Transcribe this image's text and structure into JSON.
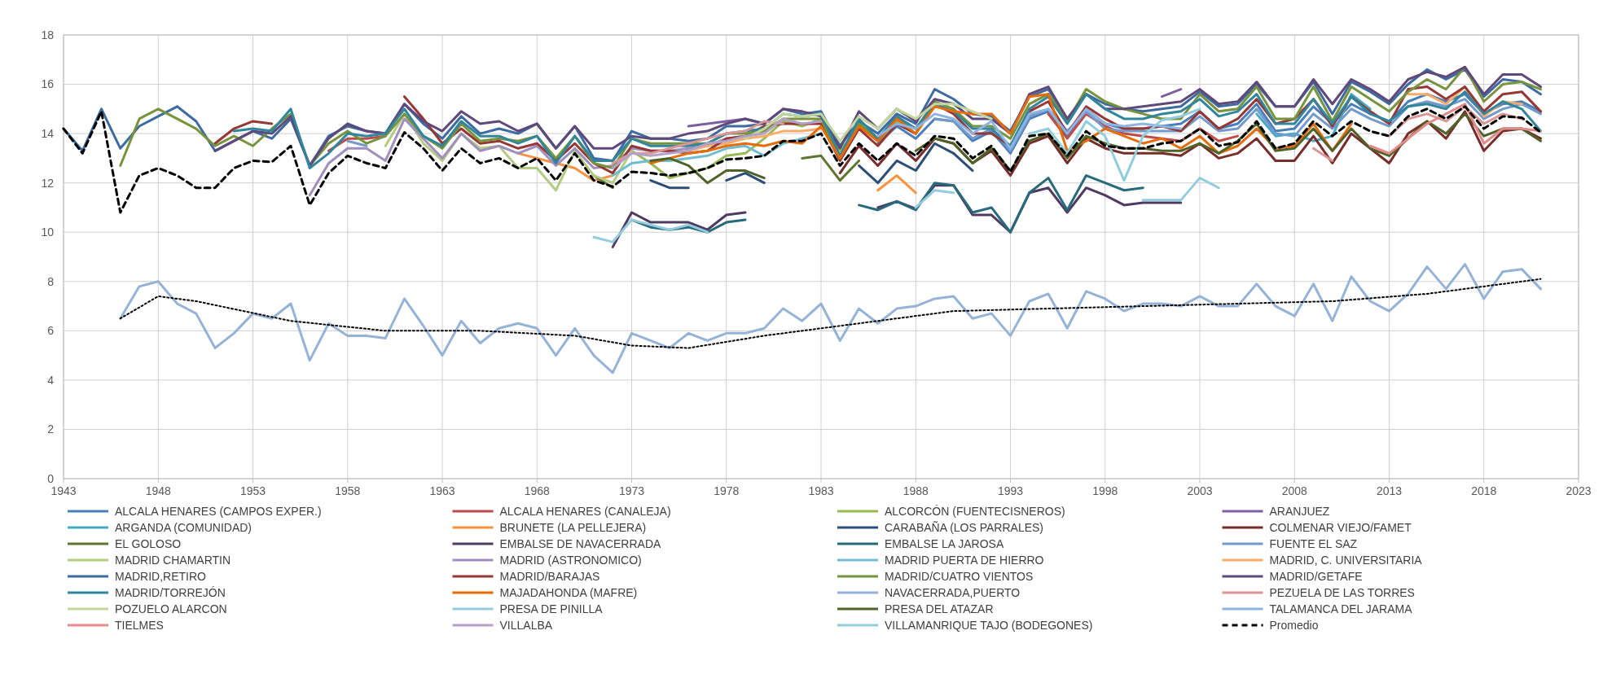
{
  "chart_data": {
    "type": "line",
    "xlim": [
      1943,
      2023
    ],
    "xticks": [
      1943,
      1948,
      1953,
      1958,
      1963,
      1968,
      1973,
      1978,
      1983,
      1988,
      1993,
      1998,
      2003,
      2008,
      2013,
      2018,
      2023
    ],
    "ylim": [
      0,
      18
    ],
    "yticks": [
      0,
      2,
      4,
      6,
      8,
      10,
      12,
      14,
      16,
      18
    ],
    "grid": true,
    "legend": "bottom",
    "marker": "none",
    "line_style": "solid",
    "series": [
      {
        "name": "ALCALA HENARES (CAMPOS EXPER.)",
        "color": "#4a7ebb",
        "x": [
          1986,
          1987,
          1988,
          1989,
          1990,
          1991,
          1992,
          1993,
          1994,
          1995,
          1996,
          1997,
          1998,
          1999,
          2000,
          2001,
          2002,
          2003,
          2004,
          2005,
          2006,
          2007,
          2008,
          2009,
          2010,
          2011,
          2012,
          2013,
          2014,
          2015,
          2016,
          2017,
          2018,
          2019,
          2020,
          2021
        ],
        "values": [
          13.6,
          14.3,
          13.8,
          14.6,
          14.5,
          13.7,
          14.1,
          13.2,
          14.6,
          14.9,
          13.9,
          15.0,
          14.4,
          14.2,
          14.2,
          14.3,
          14.4,
          14.9,
          14.2,
          14.4,
          15.2,
          14.1,
          14.2,
          15.1,
          14.4,
          15.2,
          14.8,
          14.5,
          15.3,
          15.6,
          15.3,
          15.6,
          14.8,
          15.2,
          15.3,
          14.9
        ]
      },
      {
        "name": "ALCALA HENARES (CANALEJA)",
        "color": "#be4b48",
        "x": [
          1957,
          1958,
          1959,
          1960,
          1961,
          1995,
          1996,
          1997,
          1998,
          1999,
          2000,
          2001,
          2002,
          2003,
          2004,
          2005
        ],
        "values": [
          13.3,
          13.8,
          13.8,
          13.9,
          null,
          14.8,
          13.8,
          14.8,
          14.3,
          14.0,
          13.9,
          13.8,
          13.7,
          14.2,
          13.7,
          13.9
        ]
      },
      {
        "name": "ALCORCÓN (FUENTECISNEROS)",
        "color": "#98b954",
        "x": [
          1973,
          1974,
          1975,
          1976,
          1977,
          1978,
          1979,
          1980,
          1981,
          1982,
          1983,
          1984,
          1985,
          1986,
          1987,
          1988
        ],
        "values": [
          13.3,
          12.8,
          12.2,
          12.4,
          12.6,
          13.1,
          13.2,
          13.8,
          14.5,
          14.3,
          14.6,
          13.3,
          14.3,
          13.7,
          14.5,
          14.0
        ]
      },
      {
        "name": "ARANJUEZ",
        "color": "#7d60a0",
        "x": [
          1976,
          1977,
          1978,
          1979,
          1980,
          1981,
          2001,
          2002
        ],
        "values": [
          14.3,
          14.4,
          14.5,
          14.6,
          14.4,
          null,
          15.5,
          15.8
        ]
      },
      {
        "name": "ARGANDA (COMUNIDAD)",
        "color": "#46aac5",
        "x": [
          2006,
          2007,
          2008,
          2009,
          2010,
          2011,
          2012
        ],
        "values": [
          14.8,
          13.9,
          14.0,
          13.7,
          13.9,
          15.6,
          15.0
        ]
      },
      {
        "name": "BRUNETE (LA PELLEJERA)",
        "color": "#f69240",
        "x": [
          1967,
          1968,
          1969,
          1970,
          1971,
          1972,
          1973,
          1986,
          1987,
          1988
        ],
        "values": [
          13.2,
          13.0,
          12.8,
          12.6,
          12.1,
          12.3,
          null,
          11.7,
          12.3,
          11.6
        ]
      },
      {
        "name": "CARABAÑA (LOS PARRALES)",
        "color": "#2c4d75",
        "x": [
          1974,
          1975,
          1976,
          1977,
          1978,
          1979,
          1980,
          1981,
          1985,
          1986,
          1987,
          1988,
          1989,
          1990,
          1991
        ],
        "values": [
          12.1,
          11.8,
          11.8,
          null,
          12.1,
          12.4,
          12.0,
          null,
          12.7,
          12.0,
          12.9,
          12.5,
          13.6,
          13.2,
          12.5
        ]
      },
      {
        "name": "COLMENAR VIEJO/FAMET",
        "color": "#772c2a",
        "x": [
          1984,
          1985,
          1986,
          1987,
          1988,
          1989,
          1990,
          1991,
          1992,
          1993,
          1994,
          1995,
          1996,
          1997,
          1998,
          1999,
          2000,
          2001,
          2002,
          2003,
          2004,
          2005,
          2006,
          2007,
          2008,
          2009,
          2010,
          2011,
          2012,
          2013,
          2014,
          2015,
          2016,
          2017,
          2018,
          2019,
          2020,
          2021
        ],
        "values": [
          12.4,
          13.5,
          12.7,
          13.6,
          12.9,
          13.8,
          13.6,
          12.8,
          13.3,
          12.3,
          13.6,
          13.9,
          12.8,
          13.8,
          13.4,
          13.2,
          13.2,
          13.2,
          13.1,
          13.6,
          13.0,
          13.2,
          13.8,
          12.9,
          12.9,
          13.9,
          12.8,
          14.0,
          13.4,
          12.8,
          14.0,
          14.5,
          13.8,
          14.9,
          13.3,
          14.1,
          14.2,
          13.8
        ]
      },
      {
        "name": "EL GOLOSO",
        "color": "#5f7530",
        "x": [
          1971,
          1972,
          1973,
          1982,
          1983,
          1984,
          1985
        ],
        "values": [
          12.3,
          11.8,
          null,
          13.0,
          13.1,
          12.1,
          12.9
        ]
      },
      {
        "name": "EMBALSE DE NAVACERRADA",
        "color": "#4d3b62",
        "x": [
          1972,
          1973,
          1974,
          1975,
          1976,
          1977,
          1978,
          1979,
          1980,
          1986,
          1987,
          1988,
          1989,
          1990,
          1991,
          1992,
          1993,
          1994,
          1995,
          1996,
          1997,
          1998,
          1999,
          2000,
          2001,
          2002
        ],
        "values": [
          9.4,
          10.8,
          10.4,
          10.4,
          10.4,
          10.1,
          10.7,
          10.8,
          null,
          11.0,
          11.25,
          10.95,
          11.9,
          11.9,
          10.7,
          10.7,
          10.0,
          11.6,
          11.8,
          10.8,
          11.8,
          11.5,
          11.1,
          11.2,
          11.2,
          11.2
        ]
      },
      {
        "name": "EMBALSE LA JAROSA",
        "color": "#276a7c",
        "x": [
          1973,
          1974,
          1975,
          1976,
          1977,
          1978,
          1979,
          1980,
          1985,
          1986,
          1987,
          1988,
          1989,
          1990,
          1991,
          1992,
          1993,
          1994,
          1995,
          1996,
          1997,
          1998,
          1999,
          2000
        ],
        "values": [
          10.5,
          10.2,
          10.1,
          10.2,
          10.0,
          10.4,
          10.5,
          null,
          11.1,
          10.9,
          11.25,
          10.9,
          12.0,
          11.9,
          10.8,
          11.0,
          10.0,
          11.6,
          12.2,
          10.9,
          12.3,
          12.0,
          11.7,
          11.8
        ]
      },
      {
        "name": "FUENTE EL SAZ",
        "color": "#729aca",
        "x": [
          1958,
          1959,
          1960,
          1989,
          1990,
          1991,
          1992,
          1993,
          1994,
          1995,
          1996,
          1997,
          1998,
          1999,
          2000,
          2001,
          2002,
          2003,
          2004,
          2005,
          2006,
          2007,
          2008,
          2009,
          2010,
          2011,
          2012,
          2013,
          2014,
          2015,
          2016,
          2017,
          2018,
          2019,
          2020,
          2021
        ],
        "values": [
          13.7,
          13.5,
          null,
          14.6,
          14.5,
          13.8,
          14.2,
          13.3,
          14.7,
          15.0,
          14.1,
          14.9,
          14.2,
          14.1,
          14.1,
          14.1,
          14.1,
          14.7,
          14.1,
          14.2,
          15.0,
          14.0,
          13.9,
          14.8,
          14.2,
          15.0,
          14.6,
          14.3,
          15.1,
          15.3,
          15.1,
          15.4,
          14.6,
          15.0,
          15.2,
          14.8
        ]
      },
      {
        "name": "MADRID  CHAMARTIN",
        "color": "#b3cb82",
        "x": [
          1960,
          1961,
          1962,
          1963,
          1964,
          1965,
          1966,
          1967,
          1968,
          1969,
          1970,
          1971,
          1972,
          1973
        ],
        "values": [
          13.5,
          14.8,
          13.6,
          12.9,
          14.0,
          13.4,
          13.5,
          12.6,
          12.6,
          11.7,
          13.3,
          12.3,
          12.0,
          13.3
        ]
      },
      {
        "name": "MADRID (ASTRONOMICO)",
        "color": "#a08fbd",
        "x": [
          1956,
          1957,
          1958,
          1959,
          1960,
          1961,
          1962,
          1963,
          1964,
          1965,
          1966,
          1967,
          1968,
          1969,
          1970,
          1971,
          1972,
          1973,
          1974,
          1975,
          1976,
          1977,
          1978,
          1979
        ],
        "values": [
          11.5,
          12.8,
          13.4,
          13.4,
          12.9,
          14.6,
          13.8,
          13.0,
          14.0,
          13.3,
          13.5,
          13.2,
          13.5,
          12.7,
          13.4,
          12.6,
          12.7,
          13.4,
          13.3,
          13.3,
          13.4,
          13.5,
          13.8,
          13.9
        ]
      },
      {
        "name": "MADRID PUERTA DE HIERRO",
        "color": "#6fbdd1",
        "x": [
          1972,
          1973,
          1974,
          1975,
          1976,
          1977,
          1978,
          1979,
          1980,
          1981,
          1982,
          1983
        ],
        "values": [
          12.3,
          12.8,
          12.9,
          12.9,
          13.0,
          13.1,
          13.4,
          13.5,
          13.1,
          13.6,
          13.8,
          14.0
        ]
      },
      {
        "name": "MADRID, C. UNIVERSITARIA",
        "color": "#f9ab6b",
        "x": [
          1976,
          1977,
          1978,
          1979,
          1980,
          1981,
          1982,
          1983,
          2013,
          2014,
          2015,
          2016,
          2017,
          2018,
          2019,
          2020
        ],
        "values": [
          13.3,
          13.5,
          13.6,
          13.8,
          13.9,
          14.1,
          14.1,
          14.2,
          null,
          15.6,
          15.6,
          15.2,
          15.9,
          14.7,
          15.3,
          15.2
        ]
      },
      {
        "name": "MADRID,RETIRO",
        "color": "#3d6aa0",
        "x": [
          1943,
          1944,
          1945,
          1946,
          1947,
          1948,
          1949,
          1950,
          1951,
          1952,
          1953,
          1954,
          1955,
          1956,
          1957,
          1958,
          1959,
          1960,
          1961,
          1962,
          1963,
          1964,
          1965,
          1966,
          1967,
          1968,
          1969,
          1970,
          1971,
          1972,
          1973,
          1974,
          1975,
          1976,
          1977,
          1978,
          1979,
          1980,
          1981,
          1982,
          1983,
          1984,
          1985,
          1986,
          1987,
          1988,
          1989,
          1990,
          1991,
          1992,
          1993,
          1994,
          1995,
          1996,
          1997,
          1998,
          1999,
          2000,
          2001,
          2002,
          2003,
          2004,
          2005,
          2006,
          2007,
          2008,
          2009,
          2010,
          2011,
          2012,
          2013,
          2014,
          2015,
          2016,
          2017,
          2018,
          2019,
          2020,
          2021
        ],
        "values": [
          14.2,
          13.3,
          15.0,
          13.4,
          14.3,
          14.7,
          15.1,
          14.5,
          13.3,
          13.7,
          14.1,
          13.8,
          14.6,
          12.7,
          13.9,
          14.3,
          14.1,
          14.0,
          15.2,
          14.4,
          13.8,
          14.7,
          14.0,
          14.2,
          14.0,
          14.4,
          13.4,
          14.3,
          13.0,
          12.9,
          14.1,
          13.8,
          13.8,
          13.7,
          13.8,
          14.3,
          14.3,
          14.4,
          15.0,
          14.8,
          14.9,
          13.5,
          14.5,
          14.0,
          14.8,
          14.4,
          15.8,
          15.4,
          14.8,
          14.7,
          14.1,
          15.5,
          15.8,
          14.6,
          15.6,
          15.2,
          15.0,
          14.9,
          15.0,
          15.1,
          15.7,
          15.1,
          15.2,
          16.0,
          15.1,
          15.1,
          16.1,
          14.8,
          16.1,
          15.7,
          15.2,
          16.0,
          16.6,
          16.2,
          16.6,
          15.5,
          16.2,
          16.1,
          15.6
        ]
      },
      {
        "name": "MADRID/BARAJAS",
        "color": "#953735",
        "x": [
          1951,
          1952,
          1953,
          1954,
          1955,
          1961,
          1962,
          1963,
          1964,
          1965,
          1966,
          1967,
          1968,
          1969,
          1970,
          1971,
          1972,
          1973,
          1974,
          1975,
          1976,
          1977,
          1978,
          1979,
          1980,
          1981,
          1982,
          1983,
          1984,
          1985,
          1986,
          1987,
          1988,
          1989,
          1990,
          1991,
          1992,
          1993,
          1994,
          1995,
          1996,
          1997,
          1998,
          1999,
          2000,
          2001,
          2002,
          2003,
          2004,
          2005,
          2006,
          2007,
          2008,
          2009,
          2010,
          2011,
          2012,
          2013,
          2014,
          2015,
          2016,
          2017,
          2018,
          2019,
          2020,
          2021
        ],
        "values": [
          13.6,
          14.2,
          14.5,
          14.4,
          null,
          15.5,
          14.6,
          13.6,
          14.2,
          13.6,
          13.7,
          13.4,
          13.6,
          12.9,
          13.6,
          12.8,
          12.4,
          13.5,
          13.3,
          13.3,
          13.2,
          13.3,
          13.8,
          13.9,
          14.3,
          14.4,
          14.4,
          14.4,
          12.9,
          14.2,
          13.5,
          14.4,
          14.0,
          15.2,
          14.8,
          14.0,
          14.0,
          13.5,
          14.9,
          15.3,
          14.0,
          15.1,
          14.6,
          14.2,
          14.2,
          14.3,
          14.1,
          14.9,
          14.2,
          14.6,
          15.4,
          14.4,
          14.6,
          15.4,
          14.3,
          15.5,
          14.9,
          14.4,
          15.8,
          15.9,
          15.4,
          15.9,
          14.9,
          15.6,
          15.7,
          14.9
        ]
      },
      {
        "name": "MADRID/CUATRO VIENTOS",
        "color": "#77933c",
        "x": [
          1946,
          1947,
          1948,
          1949,
          1950,
          1951,
          1952,
          1953,
          1954,
          1955,
          1956,
          1957,
          1958,
          1959,
          1960,
          1961,
          1962,
          1963,
          1964,
          1965,
          1966,
          1967,
          1968,
          1969,
          1970,
          1971,
          1972,
          1973,
          1974,
          1975,
          1976,
          1977,
          1978,
          1979,
          1980,
          1981,
          1982,
          1983,
          1984,
          1985,
          1986,
          1987,
          1988,
          1989,
          1990,
          1991,
          1992,
          1993,
          1994,
          1995,
          1996,
          1997,
          1998,
          1999,
          2000,
          2001,
          2002,
          2003,
          2004,
          2005,
          2006,
          2007,
          2008,
          2009,
          2010,
          2011,
          2012,
          2013,
          2014,
          2015,
          2016,
          2017,
          2018,
          2019,
          2020,
          2021
        ],
        "values": [
          12.7,
          14.6,
          15.0,
          14.6,
          14.2,
          13.5,
          13.9,
          13.5,
          14.2,
          14.8,
          12.7,
          13.6,
          14.1,
          13.6,
          13.9,
          14.8,
          13.9,
          13.4,
          14.4,
          13.7,
          13.8,
          13.7,
          13.9,
          13.0,
          13.9,
          12.8,
          12.6,
          13.8,
          13.6,
          13.6,
          13.6,
          13.6,
          14.0,
          14.0,
          14.1,
          14.6,
          14.6,
          14.6,
          13.0,
          14.4,
          13.8,
          14.6,
          14.2,
          15.3,
          15.0,
          14.3,
          14.3,
          13.8,
          15.2,
          15.6,
          14.5,
          15.8,
          15.3,
          15.0,
          14.8,
          14.6,
          14.6,
          15.6,
          14.9,
          15.0,
          15.9,
          14.6,
          14.6,
          15.9,
          14.5,
          15.9,
          15.4,
          14.9,
          15.7,
          16.2,
          15.8,
          16.7,
          15.3,
          16.0,
          16.1,
          15.8
        ]
      },
      {
        "name": "MADRID/GETAFE",
        "color": "#5f497a",
        "x": [
          1951,
          1952,
          1953,
          1954,
          1955,
          1956,
          1957,
          1958,
          1959,
          1960,
          1961,
          1962,
          1963,
          1964,
          1965,
          1966,
          1967,
          1968,
          1969,
          1970,
          1971,
          1972,
          1973,
          1974,
          1975,
          1976,
          1977,
          1978,
          1979,
          1980,
          1981,
          1982,
          1983,
          1984,
          1985,
          1986,
          1987,
          1988,
          1989,
          1990,
          1991,
          1992,
          1993,
          1994,
          1995,
          1996,
          1997,
          1998,
          1999,
          2000,
          2001,
          2002,
          2003,
          2004,
          2005,
          2006,
          2007,
          2008,
          2009,
          2010,
          2011,
          2012,
          2013,
          2014,
          2015,
          2016,
          2017,
          2018,
          2019,
          2020,
          2021
        ],
        "values": [
          13.3,
          13.7,
          14.1,
          14.0,
          14.7,
          12.7,
          13.8,
          14.4,
          14.1,
          14.0,
          15.2,
          14.5,
          14.1,
          14.9,
          14.4,
          14.5,
          14.1,
          14.4,
          13.4,
          14.3,
          13.4,
          13.4,
          13.9,
          13.8,
          13.8,
          14.0,
          14.1,
          14.4,
          14.6,
          14.4,
          15.0,
          14.9,
          14.7,
          13.4,
          14.9,
          14.2,
          15.0,
          14.5,
          15.4,
          15.2,
          14.6,
          14.6,
          14.0,
          15.6,
          15.9,
          14.6,
          15.6,
          15.0,
          15.0,
          15.1,
          15.2,
          15.3,
          15.8,
          15.2,
          15.3,
          16.1,
          15.1,
          15.1,
          16.2,
          15.2,
          16.2,
          15.8,
          15.3,
          16.2,
          16.5,
          16.3,
          16.7,
          15.6,
          16.4,
          16.4,
          15.9
        ]
      },
      {
        "name": "MADRID/TORREJÓN",
        "color": "#31859c",
        "x": [
          1952,
          1953,
          1954,
          1955,
          1956,
          1957,
          1958,
          1959,
          1960,
          1961,
          1962,
          1963,
          1964,
          1965,
          1966,
          1967,
          1968,
          1969,
          1970,
          1971,
          1972,
          1973,
          1974,
          1975,
          1976,
          1977,
          1978,
          1979,
          1980,
          1981,
          1982,
          1983,
          1984,
          1985,
          1986,
          1987,
          1988,
          1989,
          1990,
          1991,
          1992,
          1993,
          1994,
          1995,
          1996,
          1997,
          1998,
          1999,
          2000,
          2001,
          2002,
          2003,
          2004,
          2005,
          2006,
          2007,
          2008,
          2009,
          2010,
          2011,
          2012,
          2013,
          2014,
          2015,
          2016,
          2017,
          2018,
          2019,
          2020,
          2021
        ],
        "values": [
          14.1,
          14.2,
          14.1,
          15.0,
          12.6,
          13.2,
          14.0,
          13.9,
          14.0,
          15.0,
          13.9,
          13.5,
          14.5,
          13.9,
          13.9,
          13.6,
          13.9,
          12.8,
          13.9,
          12.9,
          12.9,
          13.8,
          13.5,
          13.5,
          13.5,
          13.6,
          14.0,
          14.1,
          14.2,
          14.8,
          14.7,
          14.8,
          13.1,
          14.6,
          13.8,
          14.7,
          14.2,
          15.2,
          14.9,
          14.2,
          14.2,
          13.5,
          15.0,
          15.5,
          14.4,
          15.6,
          15.0,
          14.6,
          14.6,
          14.8,
          14.9,
          15.4,
          14.7,
          14.9,
          15.6,
          14.4,
          14.4,
          15.4,
          14.4,
          15.5,
          14.8,
          14.5,
          15.1,
          15.2,
          15.0,
          15.7,
          14.8,
          15.3,
          15.0,
          14.1
        ]
      },
      {
        "name": "MAJADAHONDA (MAFRE)",
        "color": "#e46c0a",
        "x": [
          1974,
          1975,
          1976,
          1977,
          1978,
          1979,
          1980,
          1981,
          1982,
          1983,
          1984,
          1985,
          1986,
          1987,
          1988,
          1989,
          1990,
          1991,
          1992,
          1993,
          1994,
          1995,
          1996,
          1997,
          1998,
          1999,
          2000,
          2001,
          2002,
          2003,
          2004,
          2005,
          2006,
          2007,
          2008,
          2009,
          2010,
          2011
        ],
        "values": [
          12.8,
          13.0,
          13.2,
          13.3,
          13.5,
          13.6,
          13.5,
          13.7,
          13.6,
          14.3,
          13.0,
          14.3,
          13.7,
          14.6,
          14.0,
          15.1,
          14.9,
          14.8,
          14.8,
          14.0,
          15.5,
          15.6,
          13.3,
          13.7,
          14.2,
          13.9,
          13.6,
          13.8,
          13.4,
          13.9,
          13.2,
          13.5,
          14.2,
          13.4,
          13.5,
          14.4,
          13.3,
          14.4
        ]
      },
      {
        "name": "NAVACERRADA,PUERTO",
        "color": "#95b3d7",
        "x": [
          1946,
          1947,
          1948,
          1949,
          1950,
          1951,
          1952,
          1953,
          1954,
          1955,
          1956,
          1957,
          1958,
          1959,
          1960,
          1961,
          1962,
          1963,
          1964,
          1965,
          1966,
          1967,
          1968,
          1969,
          1970,
          1971,
          1972,
          1973,
          1974,
          1975,
          1976,
          1977,
          1978,
          1979,
          1980,
          1981,
          1982,
          1983,
          1984,
          1985,
          1986,
          1987,
          1988,
          1989,
          1990,
          1991,
          1992,
          1993,
          1994,
          1995,
          1996,
          1997,
          1998,
          1999,
          2000,
          2001,
          2002,
          2003,
          2004,
          2005,
          2006,
          2007,
          2008,
          2009,
          2010,
          2011,
          2012,
          2013,
          2014,
          2015,
          2016,
          2017,
          2018,
          2019,
          2020,
          2021
        ],
        "values": [
          6.5,
          7.8,
          8.0,
          7.1,
          6.7,
          5.3,
          5.9,
          6.7,
          6.5,
          7.1,
          4.8,
          6.3,
          5.8,
          5.8,
          5.7,
          7.3,
          6.2,
          5.0,
          6.4,
          5.5,
          6.1,
          6.3,
          6.1,
          5.0,
          6.1,
          5.0,
          4.3,
          5.9,
          5.6,
          5.3,
          5.9,
          5.6,
          5.9,
          5.9,
          6.1,
          6.9,
          6.4,
          7.1,
          5.6,
          6.9,
          6.3,
          6.9,
          7.0,
          7.3,
          7.4,
          6.5,
          6.7,
          5.8,
          7.2,
          7.5,
          6.1,
          7.6,
          7.3,
          6.8,
          7.1,
          7.1,
          7.0,
          7.4,
          7.0,
          7.0,
          7.9,
          7.0,
          6.6,
          7.9,
          6.4,
          8.2,
          7.2,
          6.8,
          7.5,
          8.6,
          7.7,
          8.7,
          7.3,
          8.4,
          8.5,
          7.7
        ]
      },
      {
        "name": "PEZUELA DE LAS TORRES",
        "color": "#d99694",
        "x": [
          1972,
          1973,
          1974,
          1975,
          1976,
          1977,
          1978,
          1979,
          1980,
          1981,
          2008,
          2009,
          2010,
          2011,
          2013,
          2014,
          2015,
          2016,
          2017,
          2018,
          2019,
          2020
        ],
        "values": [
          12.8,
          13.2,
          13.2,
          13.4,
          13.6,
          13.8,
          14.0,
          14.1,
          14.5,
          14.4,
          null,
          13.4,
          12.9,
          null,
          13.9,
          14.6,
          14.8,
          14.5,
          15.1,
          14.4,
          14.8,
          14.6
        ]
      },
      {
        "name": "POZUELO ALARCON",
        "color": "#c3d69b",
        "x": [
          1979,
          1980,
          1981,
          1982,
          1983,
          1984,
          1985,
          1986,
          1987,
          1988,
          1989,
          1990,
          1991,
          1992
        ],
        "values": [
          13.8,
          14.2,
          14.8,
          14.7,
          14.8,
          13.7,
          14.7,
          14.2,
          15.0,
          14.6,
          15.2,
          15.2,
          14.9,
          14.6
        ]
      },
      {
        "name": "PRESA DE PINILLA",
        "color": "#93cddd",
        "x": [
          1971,
          1972,
          1973,
          1974,
          1975,
          1976,
          1977,
          1978,
          1988,
          1989,
          1990,
          1991,
          1999,
          2000,
          2001,
          2002,
          2003,
          2004
        ],
        "values": [
          9.8,
          9.6,
          10.5,
          10.3,
          10.1,
          10.3,
          10.0,
          null,
          11.0,
          11.7,
          11.6,
          null,
          null,
          11.3,
          11.3,
          11.3,
          12.2,
          11.8
        ]
      },
      {
        "name": "PRESA DEL ATAZAR",
        "color": "#4f6228",
        "x": [
          1974,
          1975,
          1976,
          1977,
          1978,
          1979,
          1980,
          1981,
          1988,
          1989,
          1990,
          1991,
          1992,
          1993,
          1994,
          1995,
          1996,
          1997,
          1998,
          1999,
          2000,
          2001,
          2002,
          2003,
          2004,
          2005,
          2006,
          2007,
          2008,
          2009,
          2010,
          2011,
          2012,
          2013,
          2014,
          2015,
          2016,
          2017,
          2018,
          2019,
          2020,
          2021
        ],
        "values": [
          12.9,
          13.0,
          12.7,
          12.0,
          12.5,
          12.5,
          12.2,
          null,
          13.3,
          13.8,
          13.6,
          12.8,
          13.4,
          12.5,
          13.7,
          14.0,
          13.0,
          13.9,
          13.6,
          13.4,
          13.4,
          13.3,
          13.3,
          13.6,
          13.2,
          13.7,
          14.4,
          13.3,
          13.4,
          14.2,
          13.3,
          14.2,
          13.4,
          13.1,
          13.8,
          14.5,
          14.0,
          14.8,
          13.9,
          14.2,
          14.2,
          13.7
        ]
      },
      {
        "name": "TALAMANCA DEL JARAMA",
        "color": "#8eb4e3",
        "x": [
          1986,
          1987,
          1988,
          1989,
          1990,
          1991,
          1992,
          1993,
          1994,
          1995,
          1996,
          1997,
          1998,
          1999,
          2000,
          2001,
          2002
        ],
        "values": [
          13.9,
          14.4,
          14.2,
          14.8,
          14.6,
          14.0,
          14.5,
          13.4,
          14.8,
          15.0,
          14.0,
          15.0,
          14.4,
          14.3,
          14.4,
          14.3,
          14.2
        ]
      },
      {
        "name": "TIELMES",
        "color": "#e6898a",
        "x": [
          2012,
          2013,
          2014,
          2015,
          2016,
          2017,
          2018,
          2019,
          2020,
          2021
        ],
        "values": [
          13.5,
          13.2,
          13.8,
          14.4,
          14.8,
          15.2,
          13.6,
          14.2,
          14.2,
          14.1
        ]
      },
      {
        "name": "VILLALBA",
        "color": "#b3a2c7",
        "x": [
          1972,
          1973,
          1974,
          1975,
          1976,
          1977,
          1978,
          1979,
          1980,
          1981,
          1982,
          1983
        ],
        "values": [
          12.6,
          13.2,
          13.1,
          13.2,
          13.3,
          13.6,
          13.7,
          13.9,
          14.0,
          14.6,
          14.4,
          14.5
        ]
      },
      {
        "name": "VILLAMANRIQUE TAJO (BODEGONES)",
        "color": "#92cddc",
        "x": [
          1994,
          1995,
          1996,
          1997,
          1998,
          1999,
          2000,
          2001,
          2002,
          2003
        ],
        "values": [
          14.0,
          14.2,
          13.2,
          14.5,
          13.9,
          12.1,
          13.9,
          14.55,
          14.7,
          15.0
        ]
      },
      {
        "name": "Promedio",
        "color": "#000000",
        "line_style": "dashed",
        "x": [
          1943,
          1944,
          1945,
          1946,
          1947,
          1948,
          1949,
          1950,
          1951,
          1952,
          1953,
          1954,
          1955,
          1956,
          1957,
          1958,
          1959,
          1960,
          1961,
          1962,
          1963,
          1964,
          1965,
          1966,
          1967,
          1968,
          1969,
          1970,
          1971,
          1972,
          1973,
          1974,
          1975,
          1976,
          1977,
          1978,
          1979,
          1980,
          1981,
          1982,
          1983,
          1984,
          1985,
          1986,
          1987,
          1988,
          1989,
          1990,
          1991,
          1992,
          1993,
          1994,
          1995,
          1996,
          1997,
          1998,
          1999,
          2000,
          2001,
          2002,
          2003,
          2004,
          2005,
          2006,
          2007,
          2008,
          2009,
          2010,
          2011,
          2012,
          2013,
          2014,
          2015,
          2016,
          2017,
          2018,
          2019,
          2020,
          2021
        ],
        "values": [
          14.2,
          13.2,
          14.9,
          10.8,
          12.3,
          12.6,
          12.3,
          11.8,
          11.8,
          12.6,
          12.9,
          12.85,
          13.5,
          11.1,
          12.4,
          13.1,
          12.8,
          12.6,
          14.05,
          13.4,
          12.5,
          13.4,
          12.8,
          13.0,
          12.6,
          13.0,
          12.1,
          13.2,
          12.1,
          11.85,
          12.45,
          12.4,
          12.3,
          12.4,
          12.6,
          12.95,
          13.0,
          13.1,
          13.7,
          13.7,
          14.0,
          12.7,
          13.6,
          12.9,
          13.6,
          13.1,
          13.9,
          13.8,
          13.0,
          13.5,
          12.45,
          13.9,
          14.0,
          13.1,
          14.1,
          13.5,
          13.4,
          13.4,
          13.6,
          13.7,
          14.2,
          13.5,
          13.65,
          14.5,
          13.4,
          13.6,
          14.5,
          13.9,
          14.5,
          14.1,
          13.9,
          14.7,
          15.0,
          14.6,
          15.1,
          14.2,
          14.7,
          14.65,
          14.05
        ]
      },
      {
        "color": "#000000",
        "line_style": "dotted",
        "x": [
          1946,
          1948,
          1950,
          1955,
          1960,
          1965,
          1970,
          1973,
          1976,
          1980,
          1985,
          1990,
          1995,
          2000,
          2005,
          2010,
          2015,
          2019,
          2021
        ],
        "values": [
          6.5,
          7.4,
          7.2,
          6.4,
          6.0,
          6.0,
          5.8,
          5.4,
          5.3,
          5.8,
          6.3,
          6.8,
          6.9,
          7.0,
          7.1,
          7.2,
          7.5,
          7.9,
          8.1
        ]
      }
    ]
  }
}
